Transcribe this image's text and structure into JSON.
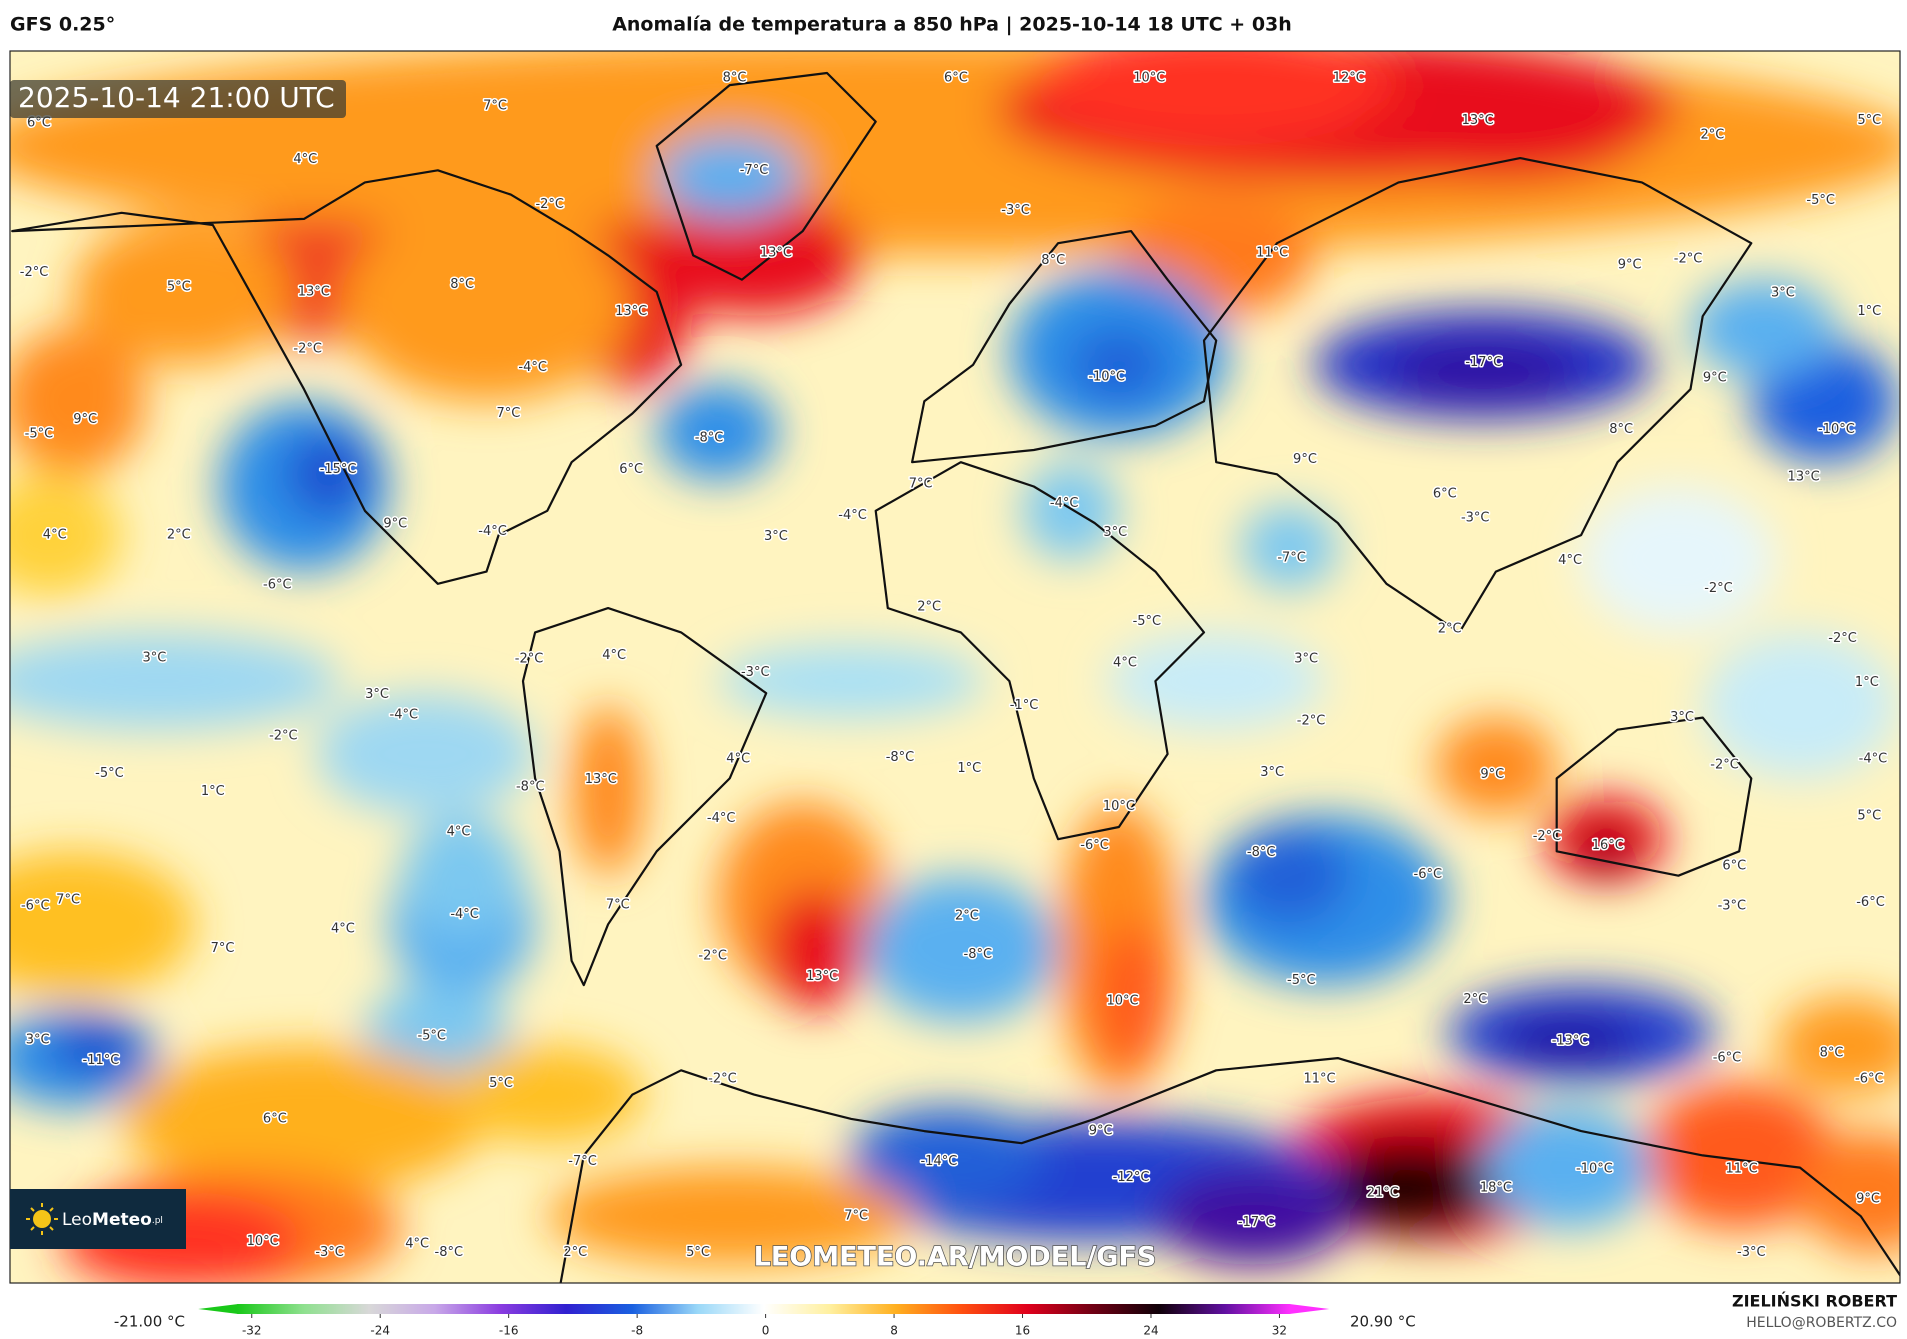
{
  "header": {
    "left": "GFS 0.25°",
    "title": "Anomalía de temperatura a 850 hPa | 2025-10-14 18 UTC + 03h"
  },
  "timestamp": "2025-10-14 21:00 UTC",
  "watermark": "LEOMETEO.AR/MODEL/GFS",
  "logo": {
    "leo": "Leo",
    "meteo": "Meteo",
    "suffix": ".pl"
  },
  "footer": {
    "author": "ZIELIŃSKI ROBERT",
    "email": "HELLO@ROBERTZ.CO"
  },
  "colorbar": {
    "min_label": "-21.00 °C",
    "max_label": "20.90 °C",
    "ticks": [
      -32,
      -24,
      -16,
      -8,
      0,
      8,
      16,
      24,
      32
    ],
    "range": [
      -32,
      32
    ],
    "colors": [
      "#19c819",
      "#8ee08e",
      "#d8d8d8",
      "#c8a8e8",
      "#8a3ce0",
      "#3020d0",
      "#1a60e0",
      "#9ad8f8",
      "#ffffff",
      "#fff0a0",
      "#ffb020",
      "#ff5010",
      "#e0001c",
      "#700014",
      "#100008",
      "#6010a0",
      "#ff30ff"
    ]
  },
  "map_labels": [
    "6°C",
    "7°C",
    "8°C",
    "6°C",
    "10°C",
    "12°C",
    "13°C",
    "2°C",
    "5°C",
    "4°C",
    "-7°C",
    "-2°C",
    "-3°C",
    "-5°C",
    "-2°C",
    "5°C",
    "13°C",
    "8°C",
    "13°C",
    "8°C",
    "11°C",
    "9°C",
    "-2°C",
    "3°C",
    "1°C",
    "-2°C",
    "-4°C",
    "13°C",
    "-10°C",
    "-17°C",
    "9°C",
    "-5°C",
    "9°C",
    "7°C",
    "-8°C",
    "8°C",
    "-10°C",
    "-15°C",
    "6°C",
    "7°C",
    "-4°C",
    "13°C",
    "9°C",
    "4°C",
    "2°C",
    "9°C",
    "-4°C",
    "3°C",
    "-4°C",
    "3°C",
    "6°C",
    "-7°C",
    "4°C",
    "-3°C",
    "-6°C",
    "-2°C",
    "2°C",
    "-5°C",
    "2°C",
    "-2°C",
    "3°C",
    "-2°C",
    "-3°C",
    "4°C",
    "4°C",
    "3°C",
    "1°C",
    "3°C",
    "-4°C",
    "-1°C",
    "-2°C",
    "3°C",
    "-2°C",
    "-5°C",
    "1°C",
    "-8°C",
    "13°C",
    "4°C",
    "-8°C",
    "1°C",
    "3°C",
    "9°C",
    "-2°C",
    "-4°C",
    "10°C",
    "-4°C",
    "5°C",
    "4°C",
    "-2°C",
    "16°C",
    "-6°C",
    "-8°C",
    "-6°C",
    "6°C",
    "-6°C",
    "7°C",
    "7°C",
    "-4°C",
    "-3°C",
    "-6°C",
    "4°C",
    "7°C",
    "2°C",
    "-8°C",
    "-2°C",
    "13°C",
    "-5°C",
    "10°C",
    "2°C",
    "3°C",
    "-5°C",
    "-13°C",
    "-11°C",
    "-6°C",
    "8°C",
    "-6°C",
    "5°C",
    "-2°C",
    "11°C",
    "6°C",
    "9°C",
    "-7°C",
    "-14°C",
    "-12°C",
    "-10°C",
    "11°C",
    "21°C",
    "18°C",
    "9°C",
    "-17°C",
    "7°C",
    "10°C",
    "-3°C",
    "4°C",
    "-8°C",
    "2°C",
    "5°C",
    "-3°C"
  ]
}
